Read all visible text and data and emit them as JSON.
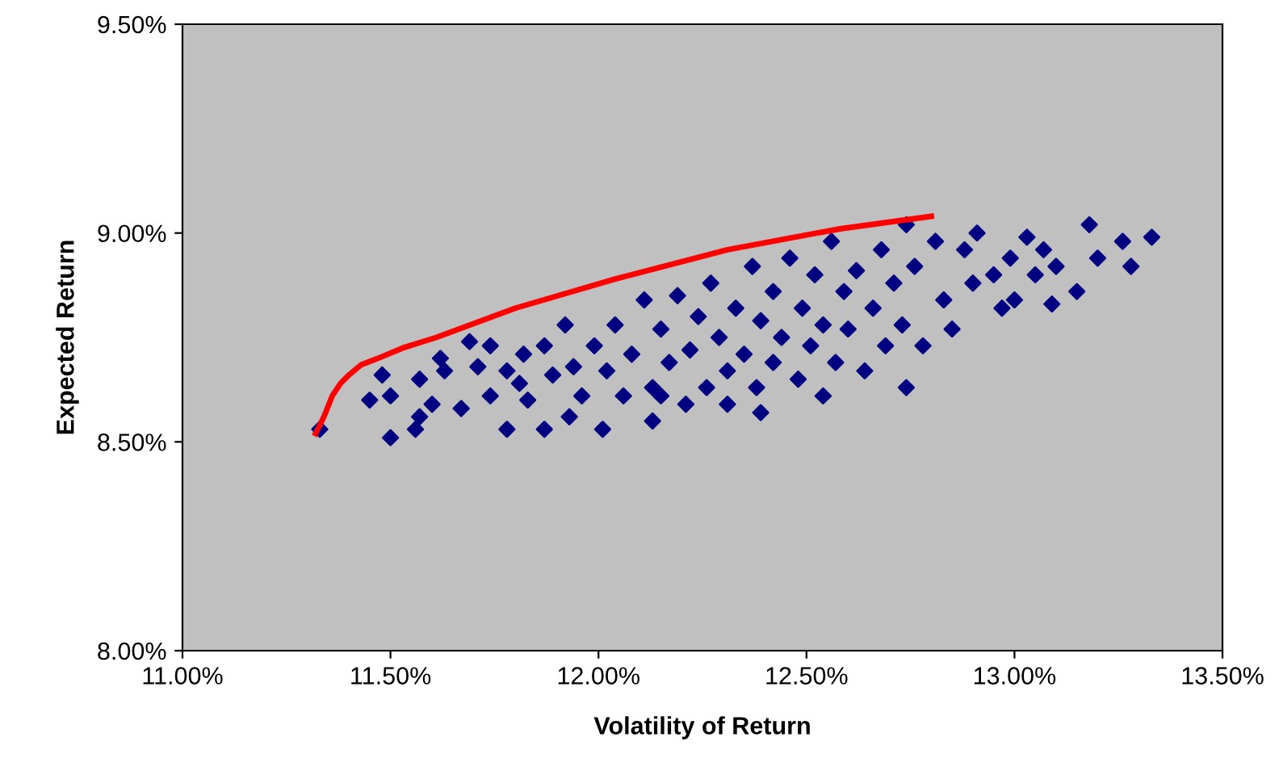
{
  "chart_data": {
    "type": "scatter",
    "xlabel": "Volatility of Return",
    "ylabel": "Expected Return",
    "xlim": [
      11.0,
      13.5
    ],
    "ylim": [
      8.0,
      9.5
    ],
    "xticks": [
      {
        "value": 11.0,
        "label": "11.00%"
      },
      {
        "value": 11.5,
        "label": "11.50%"
      },
      {
        "value": 12.0,
        "label": "12.00%"
      },
      {
        "value": 12.5,
        "label": "12.50%"
      },
      {
        "value": 13.0,
        "label": "13.00%"
      },
      {
        "value": 13.5,
        "label": "13.50%"
      }
    ],
    "yticks": [
      {
        "value": 8.0,
        "label": "8.00%"
      },
      {
        "value": 8.5,
        "label": "8.50%"
      },
      {
        "value": 9.0,
        "label": "9.00%"
      },
      {
        "value": 9.5,
        "label": "9.50%"
      }
    ],
    "grid": false,
    "legend": false,
    "series": [
      {
        "color": "#000080",
        "marker": "diamond",
        "x": [
          11.33,
          11.45,
          11.5,
          11.5,
          11.48,
          11.56,
          11.57,
          11.57,
          11.6,
          11.62,
          11.63,
          11.67,
          11.69,
          11.71,
          11.74,
          11.74,
          11.78,
          11.78,
          11.81,
          11.82,
          11.83,
          11.87,
          11.87,
          11.89,
          11.92,
          11.93,
          11.94,
          11.96,
          11.99,
          12.01,
          12.02,
          12.04,
          12.06,
          12.08,
          12.11,
          12.13,
          12.13,
          12.15,
          12.17,
          12.19,
          12.21,
          12.22,
          12.24,
          12.26,
          12.27,
          12.29,
          12.31,
          12.33,
          12.35,
          12.37,
          12.38,
          12.39,
          12.42,
          12.42,
          12.44,
          12.46,
          12.48,
          12.49,
          12.51,
          12.52,
          12.54,
          12.56,
          12.57,
          12.59,
          12.6,
          12.62,
          12.64,
          12.66,
          12.68,
          12.69,
          12.71,
          12.73,
          12.74,
          12.76,
          12.78,
          12.81,
          12.83,
          12.85,
          12.88,
          12.9,
          12.91,
          12.95,
          12.97,
          12.99,
          13.0,
          13.03,
          13.05,
          13.07,
          13.09,
          13.1,
          13.15,
          13.18,
          13.2,
          13.26,
          13.28,
          13.33,
          12.39,
          12.54,
          12.74,
          12.15,
          12.31
        ],
        "values": [
          8.53,
          8.6,
          8.51,
          8.61,
          8.66,
          8.53,
          8.56,
          8.65,
          8.59,
          8.7,
          8.67,
          8.58,
          8.74,
          8.68,
          8.73,
          8.61,
          8.53,
          8.67,
          8.64,
          8.71,
          8.6,
          8.53,
          8.73,
          8.66,
          8.78,
          8.56,
          8.68,
          8.61,
          8.73,
          8.53,
          8.67,
          8.78,
          8.61,
          8.71,
          8.84,
          8.63,
          8.55,
          8.77,
          8.69,
          8.85,
          8.59,
          8.72,
          8.8,
          8.63,
          8.88,
          8.75,
          8.67,
          8.82,
          8.71,
          8.92,
          8.63,
          8.79,
          8.86,
          8.69,
          8.75,
          8.94,
          8.65,
          8.82,
          8.73,
          8.9,
          8.78,
          8.98,
          8.69,
          8.86,
          8.77,
          8.91,
          8.67,
          8.82,
          8.96,
          8.73,
          8.88,
          8.78,
          9.02,
          8.92,
          8.73,
          8.98,
          8.84,
          8.77,
          8.96,
          8.88,
          9.0,
          8.9,
          8.82,
          8.94,
          8.84,
          8.99,
          8.9,
          8.96,
          8.83,
          8.92,
          8.86,
          9.02,
          8.94,
          8.98,
          8.92,
          8.99,
          8.57,
          8.61,
          8.63,
          8.61,
          8.59
        ]
      },
      {
        "type": "line",
        "color": "#ff0000",
        "marker": "none",
        "line_style": "solid",
        "x": [
          11.32,
          11.34,
          11.36,
          11.38,
          11.4,
          11.43,
          11.47,
          11.53,
          11.61,
          11.8,
          12.04,
          12.31,
          12.58,
          12.8
        ],
        "values": [
          8.52,
          8.56,
          8.61,
          8.64,
          8.66,
          8.685,
          8.7,
          8.725,
          8.75,
          8.82,
          8.89,
          8.96,
          9.01,
          9.04
        ]
      }
    ]
  }
}
